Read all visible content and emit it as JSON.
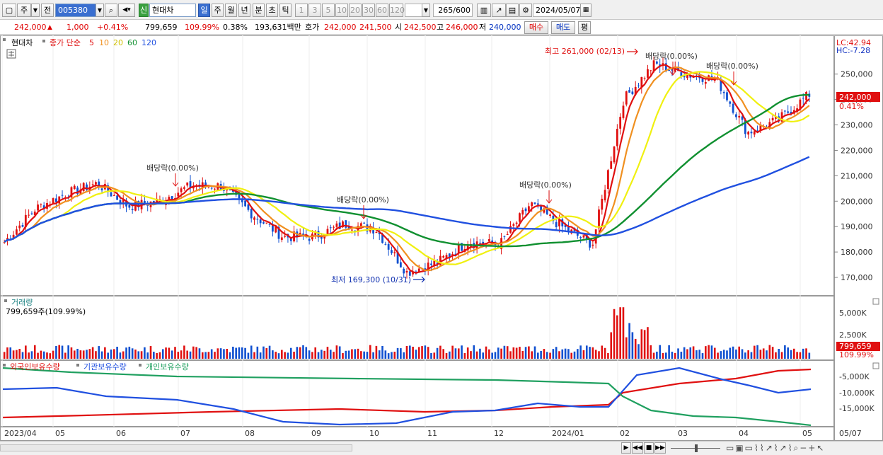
{
  "toolbar": {
    "type_label": "주",
    "prefix_label": "전",
    "code_value": "005380",
    "new_badge": "신",
    "stock_name": "현대차",
    "periods": [
      "일",
      "주",
      "월",
      "년",
      "분",
      "초",
      "틱"
    ],
    "active_period": "일",
    "intervals": [
      "1",
      "3",
      "5",
      "10",
      "20",
      "30",
      "60",
      "120"
    ],
    "count_value": "265",
    "count_total": "/600",
    "date_value": "2024/05/07"
  },
  "quote": {
    "price": "242,000",
    "change_arrow": "▲",
    "change": "1,000",
    "change_pct": "+0.41%",
    "volume": "799,659",
    "volume_ratio": "109.99%",
    "turnover": "0.38%",
    "amount": "193,631백만",
    "ask_label": "호가",
    "ask_price": "242,000",
    "bid_price": "241,500",
    "open_label": "시",
    "open": "242,500",
    "high_label": "고",
    "high": "246,000",
    "low_label": "저",
    "low": "240,000",
    "buy_label": "매수",
    "sell_label": "매도",
    "eval_label": "평"
  },
  "price_panel": {
    "stock_tag": "현대차",
    "ma_title": "종가 단순",
    "ma_periods": [
      "5",
      "10",
      "20",
      "60",
      "120"
    ],
    "ma_colors": [
      "#e01010",
      "#f09020",
      "#f0f010",
      "#109030",
      "#2050e0"
    ],
    "lc_label": "LC:42.94",
    "hc_label": "HC:-7.28",
    "last_price_badge": "242,000",
    "last_pct_badge": "0.41%",
    "max_annotation": "최고 261,000 (02/13)",
    "min_annotation": "최저 169,300 (10/31)",
    "dividend_labels": [
      "배당락(0.00%)",
      "배당락(0.00%)",
      "배당락(0.00%)",
      "배당락(0.00%)",
      "배당락(0.00%)"
    ],
    "y_ticks": [
      "250,000",
      "240,000",
      "230,000",
      "220,000",
      "210,000",
      "200,000",
      "190,000",
      "180,000",
      "170,000"
    ]
  },
  "volume_panel": {
    "title": "거래량",
    "info": "799,659주(109.99%)",
    "y_ticks": [
      "5,000K",
      "2,500K"
    ],
    "badge_value": "799,659",
    "badge_pct": "109.99%"
  },
  "holding_panel": {
    "series_names": [
      "외국인보유수량",
      "기관보유수량",
      "개인보유수량"
    ],
    "series_colors": [
      "#e01010",
      "#2050e0",
      "#20a060"
    ],
    "y_ticks": [
      "-5,000K",
      "-10,000K",
      "-15,000K"
    ]
  },
  "x_axis": {
    "labels": [
      "2023/04",
      "05",
      "06",
      "07",
      "08",
      "09",
      "10",
      "11",
      "12",
      "2024/01",
      "02",
      "03",
      "04",
      "05",
      "05/07"
    ]
  },
  "chart_data": {
    "type": "candlestick",
    "title": "현대차",
    "period": "daily",
    "date_range": [
      "2023/04",
      "2024/05/07"
    ],
    "y_range": [
      165000,
      263000
    ],
    "moving_averages": [
      "5",
      "10",
      "20",
      "60",
      "120"
    ],
    "close_series": [
      {
        "x": "2023/04",
        "y": 184000
      },
      {
        "x": "2023/04",
        "y": 197000
      },
      {
        "x": "05",
        "y": 203000
      },
      {
        "x": "05",
        "y": 207000
      },
      {
        "x": "06",
        "y": 198000
      },
      {
        "x": "06",
        "y": 200000
      },
      {
        "x": "07",
        "y": 206000
      },
      {
        "x": "07",
        "y": 206000
      },
      {
        "x": "08",
        "y": 195000
      },
      {
        "x": "08",
        "y": 186000
      },
      {
        "x": "09",
        "y": 186000
      },
      {
        "x": "09",
        "y": 191000
      },
      {
        "x": "10",
        "y": 189000
      },
      {
        "x": "10",
        "y": 172000
      },
      {
        "x": "11",
        "y": 176000
      },
      {
        "x": "11",
        "y": 184000
      },
      {
        "x": "12",
        "y": 183000
      },
      {
        "x": "12",
        "y": 199000
      },
      {
        "x": "2024/01",
        "y": 190000
      },
      {
        "x": "2024/01",
        "y": 183000
      },
      {
        "x": "02",
        "y": 240000
      },
      {
        "x": "02",
        "y": 254000
      },
      {
        "x": "03",
        "y": 250000
      },
      {
        "x": "03",
        "y": 248000
      },
      {
        "x": "04",
        "y": 227000
      },
      {
        "x": "04",
        "y": 232000
      },
      {
        "x": "05",
        "y": 242000
      }
    ],
    "annotations": [
      {
        "text": "최고 261,000 (02/13)",
        "value": 261000
      },
      {
        "text": "최저 169,300 (10/31)",
        "value": 169300
      }
    ],
    "last": {
      "price": 242000,
      "change": 1000,
      "change_pct": 0.41,
      "open": 242500,
      "high": 246000,
      "low": 240000,
      "volume": 799659
    }
  }
}
